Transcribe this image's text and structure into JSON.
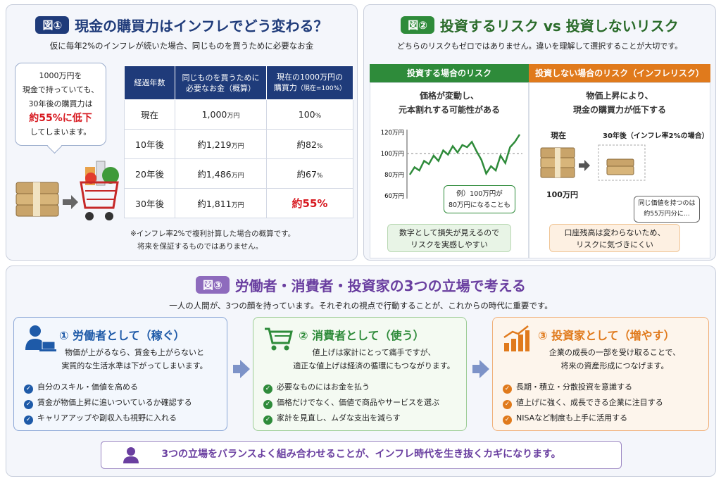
{
  "fig1": {
    "badge": "図①",
    "title": "現金の購買力はインフレでどう変わる？",
    "subtitle": "仮に毎年2%のインフレが続いた場合、同じものを買うために必要なお金",
    "bubble": {
      "l1": "1000万円を",
      "l2": "現金で持っていても、",
      "l3": "30年後の購買力は",
      "l4": "約55%に低下",
      "l5": "してしまいます。"
    },
    "headers": [
      "経過年数",
      "同じものを買うために必要なお金（概算）",
      "現在の1000万円の購買力（現在=100%）"
    ],
    "h2a": "同じものを買うために",
    "h2b": "必要なお金（概算）",
    "h3a": "現在の1000万円の",
    "h3b": "購買力",
    "h3c": "（現在=100%）",
    "rows": [
      {
        "year": "現在",
        "money": "1,000",
        "unit": "万円",
        "power": "100",
        "pct": "%"
      },
      {
        "year": "10年後",
        "money": "約1,219",
        "unit": "万円",
        "power": "約82",
        "pct": "%"
      },
      {
        "year": "20年後",
        "money": "約1,486",
        "unit": "万円",
        "power": "約67",
        "pct": "%"
      },
      {
        "year": "30年後",
        "money": "約1,811",
        "unit": "万円",
        "power": "約55%",
        "pct": ""
      }
    ],
    "note1": "※インフレ率2%で複利計算した場合の概算です。",
    "note2": "将来を保証するものではありません。"
  },
  "fig2": {
    "badge": "図②",
    "title": "投資するリスク vs 投資しないリスク",
    "subtitle": "どちらのリスクもゼロではありません。違いを理解して選択することが大切です。",
    "left": {
      "head": "投資する場合のリスク",
      "t1": "価格が変動し、",
      "t2": "元本割れする可能性がある",
      "ticks": [
        "120万円",
        "100万円",
        "80万円",
        "60万円"
      ],
      "c1": "例）100万円が",
      "c2": "80万円になることも",
      "b1": "数字として損失が見えるので",
      "b2": "リスクを実感しやすい"
    },
    "right": {
      "head": "投資しない場合のリスク（インフレリスク）",
      "t1": "物価上昇により、",
      "t2": "現金の購買力が低下する",
      "now": "現在",
      "later": "30年後（インフレ率2%の場合）",
      "amount": "100万円",
      "c1": "同じ価値を持つのは",
      "c2": "約55万円分に…",
      "b1": "口座残高は変わらないため、",
      "b2": "リスクに気づきにくい"
    }
  },
  "chart_data": {
    "type": "line",
    "yticks": [
      "120万円",
      "100万円",
      "80万円",
      "60万円"
    ],
    "ylim": [
      60,
      120
    ],
    "reference": 100,
    "series": [
      {
        "values": [
          80,
          87,
          84,
          93,
          90,
          98,
          93,
          103,
          99,
          107,
          101,
          108,
          106,
          111,
          102,
          94,
          81,
          88,
          84,
          98,
          91,
          106,
          111,
          118
        ]
      }
    ]
  },
  "fig3": {
    "badge": "図③",
    "title": "労働者・消費者・投資家の3つの立場で考える",
    "subtitle": "一人の人間が、3つの顔を持っています。それぞれの視点で行動することが、これからの時代に重要です。",
    "cards": [
      {
        "title": "① 労働者として（稼ぐ）",
        "d1": "物価が上がるなら、賃金も上がらないと",
        "d2": "実質的な生活水準は下がってしまいます。",
        "items": [
          "自分のスキル・価値を高める",
          "賃金が物価上昇に追いついているか確認する",
          "キャリアアップや副収入も視野に入れる"
        ]
      },
      {
        "title": "② 消費者として（使う）",
        "d1": "値上げは家計にとって痛手ですが、",
        "d2": "適正な値上げは経済の循環にもつながります。",
        "items": [
          "必要なものにはお金を払う",
          "価格だけでなく、価値で商品やサービスを選ぶ",
          "家計を見直し、ムダな支出を減らす"
        ]
      },
      {
        "title": "③ 投資家として（増やす）",
        "d1": "企業の成長の一部を受け取ることで、",
        "d2": "将来の資産形成につなげます。",
        "items": [
          "長期・積立・分散投資を意識する",
          "値上げに強く、成長できる企業に注目する",
          "NISAなど制度も上手に活用する"
        ]
      }
    ],
    "footer": "3つの立場をバランスよく組み合わせることが、インフレ時代を生き抜くカギになります。"
  },
  "colors": {
    "navy": "#1f3b7a",
    "green": "#2e8b3a",
    "orange": "#e07a1c",
    "purple": "#6a3fa0",
    "red": "#d71920",
    "blue": "#1e5aa8"
  }
}
